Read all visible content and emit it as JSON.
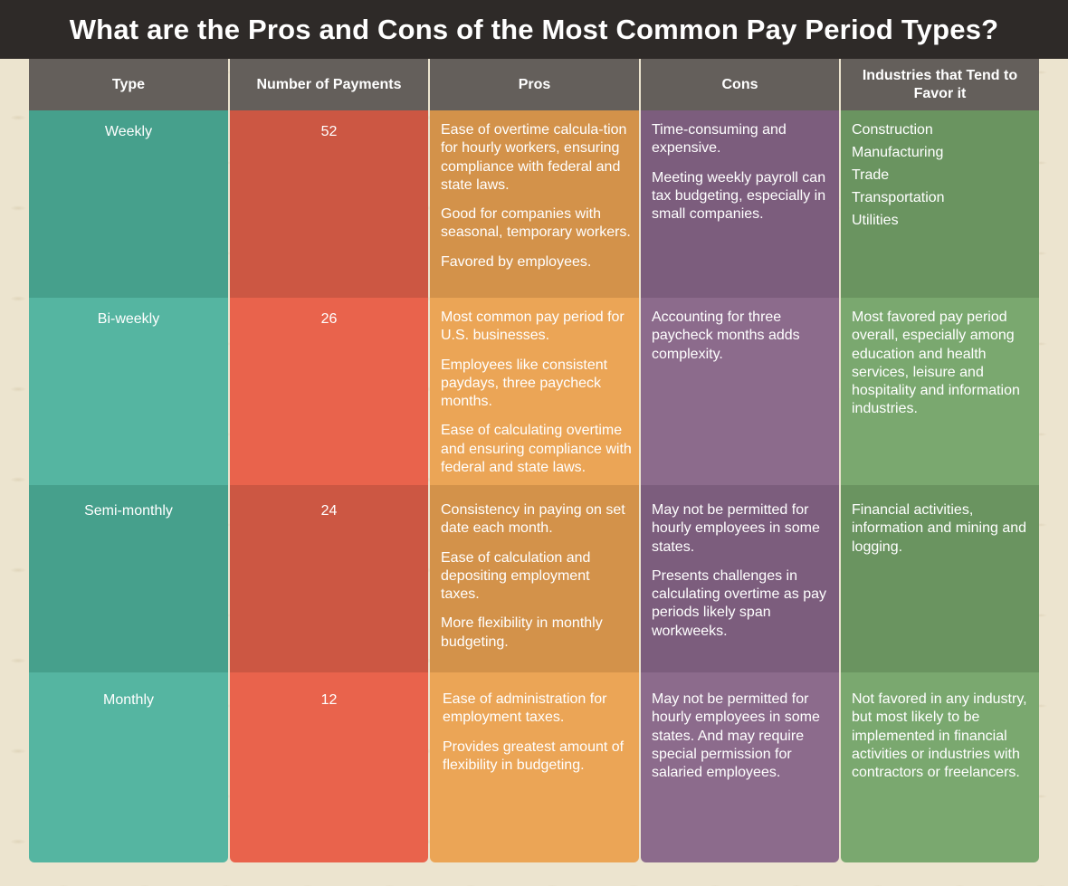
{
  "title": "What are the Pros and Cons of the Most Common Pay Period Types?",
  "headers": {
    "type": "Type",
    "payments": "Number of Payments",
    "pros": "Pros",
    "cons": "Cons",
    "industries": "Industries that Tend to Favor it"
  },
  "colors": {
    "header": "#645f5b",
    "teal_dark": "#46a08c",
    "teal_light": "#55b5a1",
    "red_dark": "#cc5743",
    "red_light": "#e9634c",
    "orange_dark": "#d3924a",
    "orange_light": "#eba556",
    "purple_dark": "#7c5d7d",
    "purple_light": "#8c6b8c",
    "green_dark": "#6a9460",
    "green_light": "#7aa86f"
  },
  "rows": [
    {
      "type": "Weekly",
      "payments": "52",
      "pros": [
        "Ease of overtime calcula-tion for hourly workers, ensuring compliance with federal and state laws.",
        "Good for companies with seasonal, temporary workers.",
        "Favored by employees."
      ],
      "cons": [
        "Time-consuming and expensive.",
        "Meeting weekly payroll can tax budgeting, especially in small companies."
      ],
      "industries": [
        "Construction",
        "Manufacturing",
        "Trade",
        "Transportation",
        "Utilities"
      ]
    },
    {
      "type": "Bi-weekly",
      "payments": "26",
      "pros": [
        "Most common pay period for U.S. businesses.",
        "Employees like consistent paydays, three paycheck months.",
        "Ease of calculating overtime and ensuring compliance with federal and state laws."
      ],
      "cons": [
        "Accounting for three paycheck months adds complexity."
      ],
      "industries": [
        "Most favored pay period overall, especially among education and health services, leisure and hospitality and information industries."
      ]
    },
    {
      "type": "Semi-monthly",
      "payments": "24",
      "pros": [
        "Consistency in paying on set date each month.",
        "Ease of calculation and depositing employment taxes.",
        "More flexibility in monthly budgeting."
      ],
      "cons": [
        "May not be permitted for hourly employees in some states.",
        "Presents challenges in calculating overtime as pay periods likely span workweeks."
      ],
      "industries": [
        "Financial activities, information and mining and logging."
      ]
    },
    {
      "type": "Monthly",
      "payments": "12",
      "pros": [
        "Ease of administration for employment taxes.",
        "Provides greatest amount of flexibility in budgeting."
      ],
      "cons": [
        "May not be permitted for hourly employees in some states. And may require special permission for salaried employees."
      ],
      "industries": [
        "Not favored in any industry, but most likely to be implemented in financial activities or industries with contractors or freelancers."
      ]
    }
  ]
}
